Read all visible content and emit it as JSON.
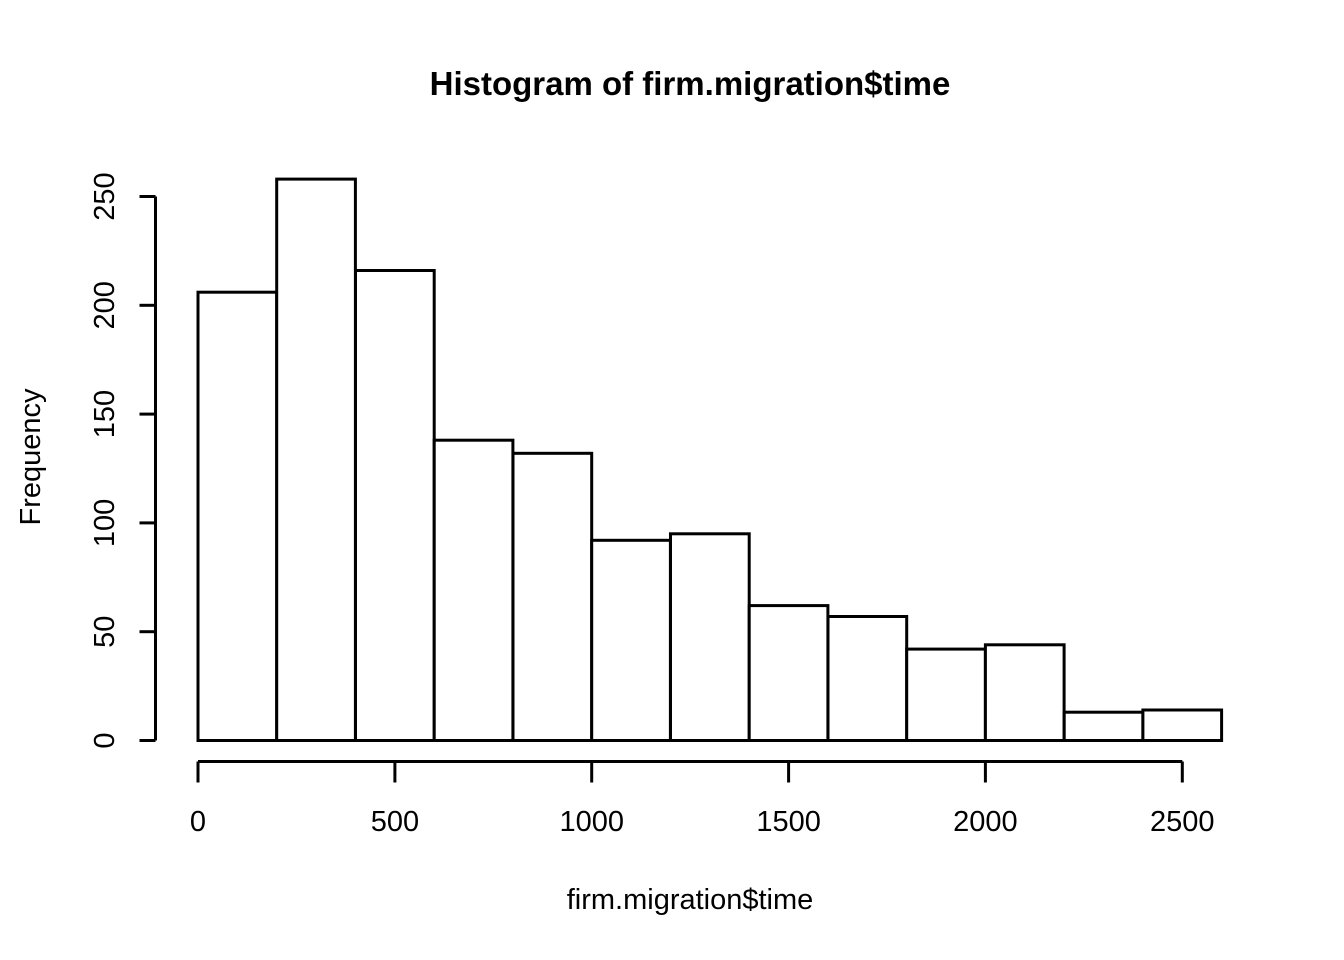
{
  "chart_data": {
    "type": "bar",
    "subtype": "histogram",
    "title": "Histogram of firm.migration$time",
    "xlabel": "firm.migration$time",
    "ylabel": "Frequency",
    "bin_start": 0,
    "bin_width": 200,
    "bin_edges": [
      0,
      200,
      400,
      600,
      800,
      1000,
      1200,
      1400,
      1600,
      1800,
      2000,
      2200,
      2400,
      2600
    ],
    "categories": [
      "0-200",
      "200-400",
      "400-600",
      "600-800",
      "800-1000",
      "1000-1200",
      "1200-1400",
      "1400-1600",
      "1600-1800",
      "1800-2000",
      "2000-2200",
      "2200-2400",
      "2400-2600"
    ],
    "values": [
      206,
      258,
      216,
      138,
      132,
      92,
      95,
      62,
      57,
      42,
      44,
      13,
      14
    ],
    "x_ticks": [
      0,
      500,
      1000,
      1500,
      2000,
      2500
    ],
    "x_tick_labels": [
      "0",
      "500",
      "1000",
      "1500",
      "2000",
      "2500"
    ],
    "y_ticks": [
      0,
      50,
      100,
      150,
      200,
      250
    ],
    "y_tick_labels": [
      "0",
      "50",
      "100",
      "150",
      "200",
      "250"
    ],
    "xlim": [
      0,
      2600
    ],
    "ylim": [
      0,
      258
    ],
    "grid": false,
    "legend_position": "none",
    "bar_fill": "#ffffff",
    "stroke_color": "#000000",
    "background": "#ffffff"
  }
}
